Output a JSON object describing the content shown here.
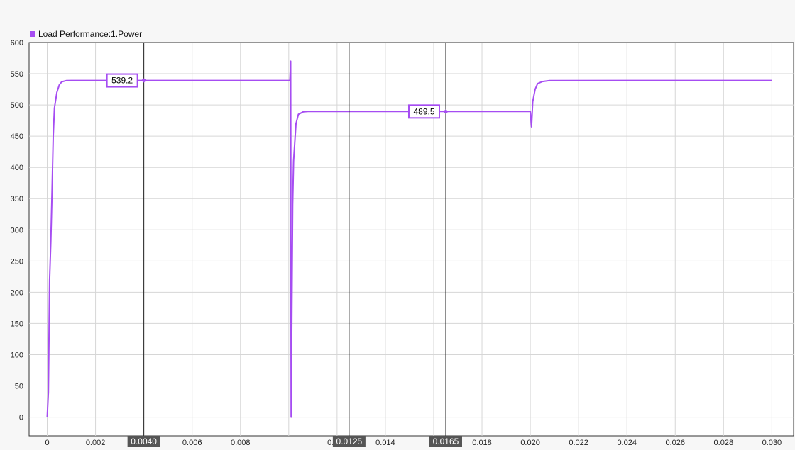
{
  "chart_data": {
    "type": "line",
    "title": "",
    "xlabel": "",
    "ylabel": "",
    "xlim": [
      -0.00075,
      0.0309
    ],
    "ylim": [
      -30,
      600
    ],
    "grid": true,
    "legend_position": "top-left",
    "x_ticks": [
      0,
      0.002,
      0.004,
      0.006,
      0.008,
      0.01,
      0.012,
      0.014,
      0.016,
      0.018,
      0.02,
      0.022,
      0.024,
      0.026,
      0.028,
      0.03
    ],
    "x_tick_labels": [
      "0",
      "0.002",
      "",
      "0.006",
      "0.008",
      "",
      "0.012",
      "0.014",
      "",
      "0.018",
      "0.020",
      "0.022",
      "0.024",
      "0.026",
      "0.028",
      "0.030"
    ],
    "y_ticks": [
      0,
      50,
      100,
      150,
      200,
      250,
      300,
      350,
      400,
      450,
      500,
      550,
      600
    ],
    "y_tick_labels": [
      "0",
      "50",
      "100",
      "150",
      "200",
      "250",
      "300",
      "350",
      "400",
      "450",
      "500",
      "550",
      "600"
    ],
    "series": [
      {
        "name": "Load Performance:1.Power",
        "color": "#a64df2",
        "x": [
          0,
          5e-05,
          0.0001,
          0.00015,
          0.0002,
          0.00025,
          0.0003,
          0.0004,
          0.0005,
          0.0006,
          0.0008,
          0.001,
          0.0012,
          0.004,
          0.01005,
          0.01008,
          0.0101,
          0.01013,
          0.01016,
          0.0102,
          0.0103,
          0.0104,
          0.0106,
          0.0108,
          0.0125,
          0.0165,
          0.02,
          0.02005,
          0.0201,
          0.0202,
          0.0203,
          0.0205,
          0.0208,
          0.03
        ],
        "y": [
          0,
          40,
          220,
          280,
          360,
          450,
          495,
          520,
          532,
          537,
          539,
          539.2,
          539.2,
          539.2,
          539.2,
          570,
          0,
          170,
          340,
          410,
          470,
          485,
          489,
          489.5,
          489.5,
          489.5,
          489.5,
          465,
          505,
          525,
          534,
          537.5,
          539,
          539.2
        ]
      }
    ],
    "cursors": [
      {
        "x": 0.004,
        "label": "0.0040"
      },
      {
        "x": 0.0125,
        "label": "0.0125"
      },
      {
        "x": 0.0165,
        "label": "0.0165"
      }
    ],
    "markers": [
      {
        "x": 0.004,
        "y": 539.2,
        "label": "539.2"
      },
      {
        "x": 0.0165,
        "y": 489.5,
        "label": "489.5"
      }
    ]
  }
}
